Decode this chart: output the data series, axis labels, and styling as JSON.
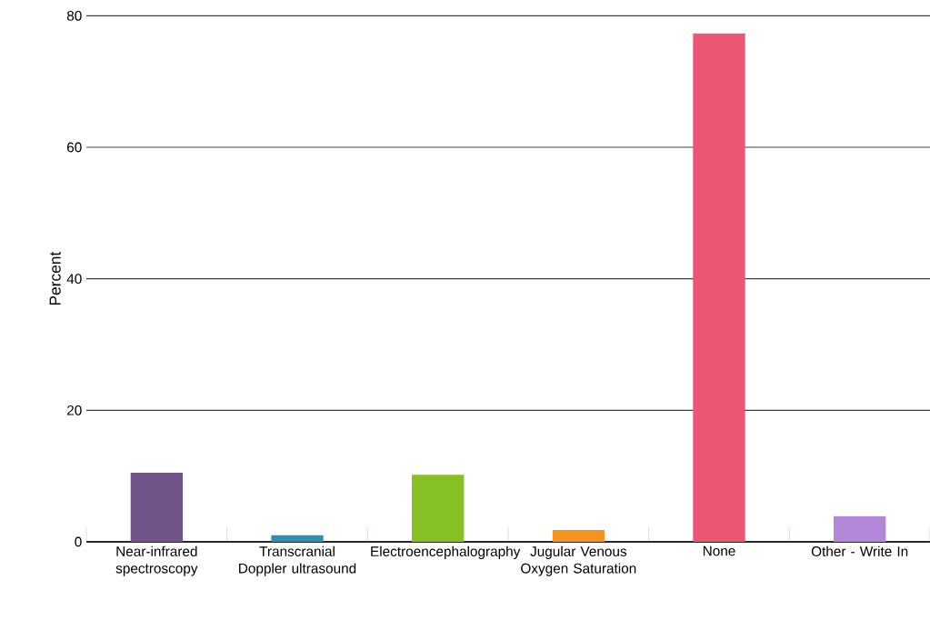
{
  "chart_data": {
    "type": "bar",
    "ylabel": "Percent",
    "categories": [
      "Near-infrared spectroscopy",
      "Transcranial Doppler ultrasound",
      "Electroencephalography",
      "Jugular Venous Oxygen Saturation",
      "None",
      "Other - Write In"
    ],
    "values": [
      10.5,
      1.0,
      10.2,
      1.8,
      77.3,
      3.9
    ],
    "colors": [
      "#70558a",
      "#2f8fb0",
      "#86c024",
      "#f4931e",
      "#ea5673",
      "#b488d8"
    ],
    "ylim": [
      0,
      80
    ],
    "yticks": [
      0,
      20,
      40,
      60,
      80
    ],
    "grid": "y"
  }
}
